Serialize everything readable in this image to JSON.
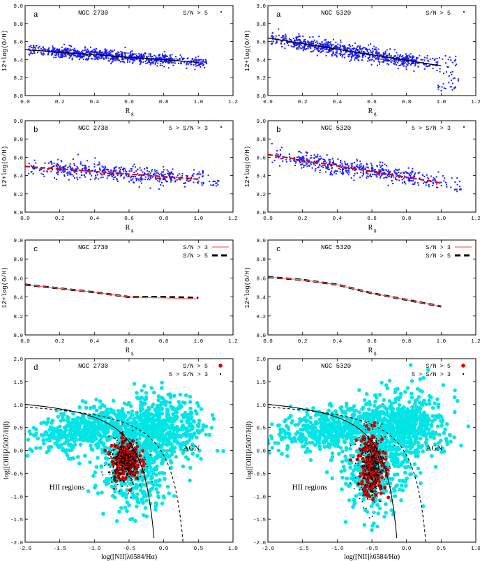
{
  "figure": {
    "panels": [
      {
        "id": "a1",
        "letter": "a",
        "galaxy": "NGC 2730",
        "legend": [
          {
            "text": "S/N > 5",
            "marker": "blue-dot"
          }
        ]
      },
      {
        "id": "a2",
        "letter": "a",
        "galaxy": "NGC 5320",
        "legend": [
          {
            "text": "S/N > 5",
            "marker": "blue-dot"
          }
        ]
      },
      {
        "id": "b1",
        "letter": "b",
        "galaxy": "NGC 2730",
        "legend": [
          {
            "text": "5 > S/N > 3",
            "marker": "blue-dot"
          }
        ]
      },
      {
        "id": "b2",
        "letter": "b",
        "galaxy": "NGC 5320",
        "legend": [
          {
            "text": "5 > S/N > 3",
            "marker": "blue-dot"
          }
        ]
      },
      {
        "id": "c1",
        "letter": "c",
        "galaxy": "NGC 2730",
        "legend": [
          {
            "text": "S/N > 3",
            "marker": "red-line"
          },
          {
            "text": "S/N > 5",
            "marker": "black-dash"
          }
        ]
      },
      {
        "id": "c2",
        "letter": "c",
        "galaxy": "NGC 5320",
        "legend": [
          {
            "text": "S/N > 3",
            "marker": "red-line"
          },
          {
            "text": "S/N > 5",
            "marker": "black-dash"
          }
        ]
      },
      {
        "id": "d1",
        "letter": "d",
        "galaxy": "NGC 2730",
        "legend": [
          {
            "text": "S/N > 5",
            "marker": "red-dot"
          },
          {
            "text": "5 > S/N > 3",
            "marker": "black-dot"
          }
        ],
        "annotations": [
          "AGN",
          "HII regions"
        ]
      },
      {
        "id": "d2",
        "letter": "d",
        "galaxy": "NGC 5320",
        "legend": [
          {
            "text": "S/N > 5",
            "marker": "red-dot"
          },
          {
            "text": "5 > S/N > 3",
            "marker": "black-dot"
          }
        ],
        "annotations": [
          "AGN",
          "HII regions"
        ]
      }
    ],
    "gradient_ylabel": "12+log(O/H)",
    "gradient_xlabel": "R",
    "gradient_xlabel_sub": "g",
    "bpt_xlabel": "log([NII]λ6584/Hα)",
    "bpt_ylabel": "log([OIII]λ5007/Hβ)"
  },
  "colors": {
    "blue": "#1a1aff",
    "red": "#e00000",
    "red_line": "#ff6666",
    "cyan": "#00e6e6",
    "black": "#000000"
  },
  "chart_data": [
    {
      "type": "scatter",
      "panel": "a1",
      "galaxy": "NGC 2730",
      "xlabel": "Rg",
      "ylabel": "12+log(O/H)",
      "xlim": [
        0,
        1.2
      ],
      "ylim": [
        8.0,
        9.0
      ],
      "xticks": [
        0,
        0.2,
        0.4,
        0.6,
        0.8,
        1.0,
        1.2
      ],
      "yticks": [
        8.0,
        8.2,
        8.4,
        8.6,
        8.8,
        9.0
      ],
      "series": [
        {
          "name": "S/N > 5",
          "spread": 0.03,
          "xrange": [
            0.02,
            1.05
          ]
        }
      ],
      "fit": {
        "x": [
          0.0,
          1.0
        ],
        "y": [
          8.51,
          8.37
        ]
      }
    },
    {
      "type": "scatter",
      "panel": "a2",
      "galaxy": "NGC 5320",
      "xlabel": "Rg",
      "ylabel": "12+log(O/H)",
      "xlim": [
        0,
        1.2
      ],
      "ylim": [
        8.0,
        9.0
      ],
      "xticks": [
        0,
        0.2,
        0.4,
        0.6,
        0.8,
        1.0,
        1.2
      ],
      "yticks": [
        8.0,
        8.2,
        8.4,
        8.6,
        8.8,
        9.0
      ],
      "series": [
        {
          "name": "S/N > 5",
          "spread": 0.04,
          "xrange": [
            0.02,
            1.1
          ]
        }
      ],
      "fit": {
        "x": [
          0.0,
          1.0
        ],
        "y": [
          8.64,
          8.33
        ]
      }
    },
    {
      "type": "scatter",
      "panel": "b1",
      "galaxy": "NGC 2730",
      "xlabel": "Rg",
      "ylabel": "12+log(O/H)",
      "xlim": [
        0,
        1.2
      ],
      "ylim": [
        8.0,
        9.0
      ],
      "xticks": [
        0,
        0.2,
        0.4,
        0.6,
        0.8,
        1.0,
        1.2
      ],
      "yticks": [
        8.0,
        8.2,
        8.4,
        8.6,
        8.8,
        9.0
      ],
      "series": [
        {
          "name": "5 > S/N > 3",
          "spread": 0.045,
          "xrange": [
            0.02,
            1.12
          ]
        }
      ],
      "fit": {
        "x": [
          0.0,
          1.0
        ],
        "y": [
          8.5,
          8.36
        ]
      }
    },
    {
      "type": "scatter",
      "panel": "b2",
      "galaxy": "NGC 5320",
      "xlabel": "Rg",
      "ylabel": "12+log(O/H)",
      "xlim": [
        0,
        1.2
      ],
      "ylim": [
        8.0,
        9.0
      ],
      "xticks": [
        0,
        0.2,
        0.4,
        0.6,
        0.8,
        1.0,
        1.2
      ],
      "yticks": [
        8.0,
        8.2,
        8.4,
        8.6,
        8.8,
        9.0
      ],
      "series": [
        {
          "name": "5 > S/N > 3",
          "spread": 0.045,
          "xrange": [
            0.02,
            1.12
          ]
        }
      ],
      "fit": {
        "x": [
          0.0,
          1.0
        ],
        "y": [
          8.63,
          8.32
        ]
      }
    },
    {
      "type": "line",
      "panel": "c1",
      "galaxy": "NGC 2730",
      "xlabel": "Rg",
      "ylabel": "12+log(O/H)",
      "xlim": [
        0,
        1.2
      ],
      "ylim": [
        8.0,
        9.0
      ],
      "xticks": [
        0,
        0.2,
        0.4,
        0.6,
        0.8,
        1.0,
        1.2
      ],
      "yticks": [
        8.0,
        8.2,
        8.4,
        8.6,
        8.8,
        9.0
      ],
      "series": [
        {
          "name": "S/N > 3",
          "x": [
            0.0,
            0.2,
            0.4,
            0.6,
            0.8,
            1.0
          ],
          "y": [
            8.53,
            8.49,
            8.45,
            8.4,
            8.39,
            8.38
          ]
        },
        {
          "name": "S/N > 5",
          "x": [
            0.0,
            0.2,
            0.4,
            0.6,
            0.8,
            1.0
          ],
          "y": [
            8.53,
            8.49,
            8.45,
            8.4,
            8.4,
            8.39
          ]
        }
      ]
    },
    {
      "type": "line",
      "panel": "c2",
      "galaxy": "NGC 5320",
      "xlabel": "Rg",
      "ylabel": "12+log(O/H)",
      "xlim": [
        0,
        1.2
      ],
      "ylim": [
        8.0,
        9.0
      ],
      "xticks": [
        0,
        0.2,
        0.4,
        0.6,
        0.8,
        1.0,
        1.2
      ],
      "yticks": [
        8.0,
        8.2,
        8.4,
        8.6,
        8.8,
        9.0
      ],
      "series": [
        {
          "name": "S/N > 3",
          "x": [
            0.0,
            0.2,
            0.4,
            0.6,
            0.8,
            1.0
          ],
          "y": [
            8.61,
            8.58,
            8.53,
            8.44,
            8.37,
            8.3
          ]
        },
        {
          "name": "S/N > 5",
          "x": [
            0.0,
            0.2,
            0.4,
            0.6,
            0.8,
            1.0
          ],
          "y": [
            8.61,
            8.58,
            8.53,
            8.44,
            8.37,
            8.3
          ]
        }
      ]
    },
    {
      "type": "scatter",
      "panel": "d1",
      "galaxy": "NGC 2730",
      "xlabel": "log([NII]λ6584/Hα)",
      "ylabel": "log([OIII]λ5007/Hβ)",
      "xlim": [
        -2.0,
        1.0
      ],
      "ylim": [
        -2.0,
        2.0
      ],
      "xticks": [
        -2.0,
        -1.5,
        -1.0,
        -0.5,
        0.0,
        0.5,
        1.0
      ],
      "yticks": [
        -2.0,
        -1.5,
        -1.0,
        -0.5,
        0.0,
        0.5,
        1.0,
        1.5,
        2.0
      ],
      "series": [
        {
          "name": "S/N > 5",
          "center": [
            -0.55,
            -0.2
          ],
          "spread": [
            0.1,
            0.22
          ]
        },
        {
          "name": "5 > S/N > 3",
          "center": [
            -0.55,
            -0.25
          ],
          "spread": [
            0.12,
            0.25
          ]
        }
      ]
    },
    {
      "type": "scatter",
      "panel": "d2",
      "galaxy": "NGC 5320",
      "xlabel": "log([NII]λ6584/Hα)",
      "ylabel": "log([OIII]λ5007/Hβ)",
      "xlim": [
        -2.0,
        1.0
      ],
      "ylim": [
        -2.0,
        2.0
      ],
      "xticks": [
        -2.0,
        -1.5,
        -1.0,
        -0.5,
        0.0,
        0.5,
        1.0
      ],
      "yticks": [
        -2.0,
        -1.5,
        -1.0,
        -0.5,
        0.0,
        0.5,
        1.0,
        1.5,
        2.0
      ],
      "series": [
        {
          "name": "S/N > 5",
          "center": [
            -0.5,
            -0.3
          ],
          "spread": [
            0.1,
            0.35
          ]
        },
        {
          "name": "5 > S/N > 3",
          "center": [
            -0.5,
            -0.35
          ],
          "spread": [
            0.1,
            0.38
          ]
        }
      ]
    }
  ]
}
